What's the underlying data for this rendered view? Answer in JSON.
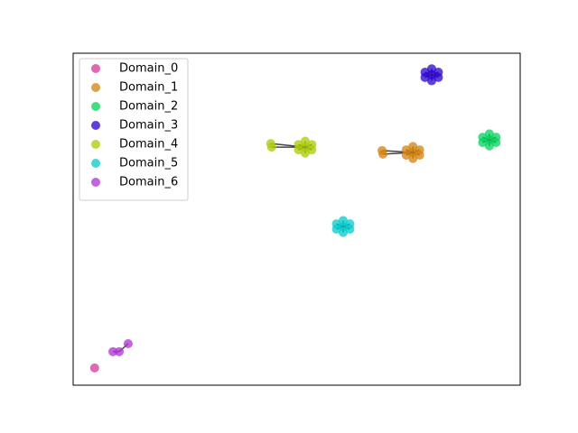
{
  "chart_data": {
    "type": "scatter",
    "xlim": [
      0,
      100
    ],
    "ylim": [
      0,
      100
    ],
    "legend": "upper left",
    "series": [
      {
        "name": "Domain_0",
        "color": "#d6379a",
        "x": [
          4.8
        ],
        "values": [
          5.2
        ]
      },
      {
        "name": "Domain_1",
        "color": "#d4820a",
        "x": [
          76.0,
          74.5,
          77.5,
          74.5,
          77.5,
          76.0,
          76.0,
          69.1,
          69.3
        ],
        "values": [
          70.1,
          70.9,
          70.9,
          69.3,
          69.3,
          71.9,
          68.3,
          70.7,
          69.6
        ]
      },
      {
        "name": "Domain_2",
        "color": "#00d45a",
        "x": [
          93.1,
          91.6,
          94.6,
          91.6,
          94.6,
          93.1,
          93.1
        ],
        "values": [
          73.9,
          74.7,
          74.7,
          73.1,
          73.1,
          75.7,
          72.1
        ]
      },
      {
        "name": "Domain_3",
        "color": "#2a00d4",
        "x": [
          80.2,
          78.7,
          81.7,
          78.7,
          81.7,
          80.2,
          80.2
        ],
        "values": [
          93.5,
          94.3,
          94.3,
          92.7,
          92.7,
          95.3,
          91.7
        ]
      },
      {
        "name": "Domain_4",
        "color": "#a8cc00",
        "x": [
          51.9,
          50.4,
          53.4,
          50.4,
          53.4,
          51.9,
          51.9,
          44.2,
          44.4
        ],
        "values": [
          71.7,
          72.5,
          72.5,
          70.9,
          70.9,
          73.5,
          69.9,
          72.8,
          71.7
        ]
      },
      {
        "name": "Domain_5",
        "color": "#00cccc",
        "x": [
          60.4,
          58.9,
          61.9,
          58.9,
          61.9,
          60.4,
          60.4
        ],
        "values": [
          47.8,
          48.6,
          48.6,
          47.0,
          47.0,
          49.6,
          46.0
        ]
      },
      {
        "name": "Domain_6",
        "color": "#b22ed4",
        "x": [
          10.3,
          8.9,
          12.3
        ],
        "values": [
          10.1,
          10.1,
          12.5
        ]
      }
    ]
  }
}
